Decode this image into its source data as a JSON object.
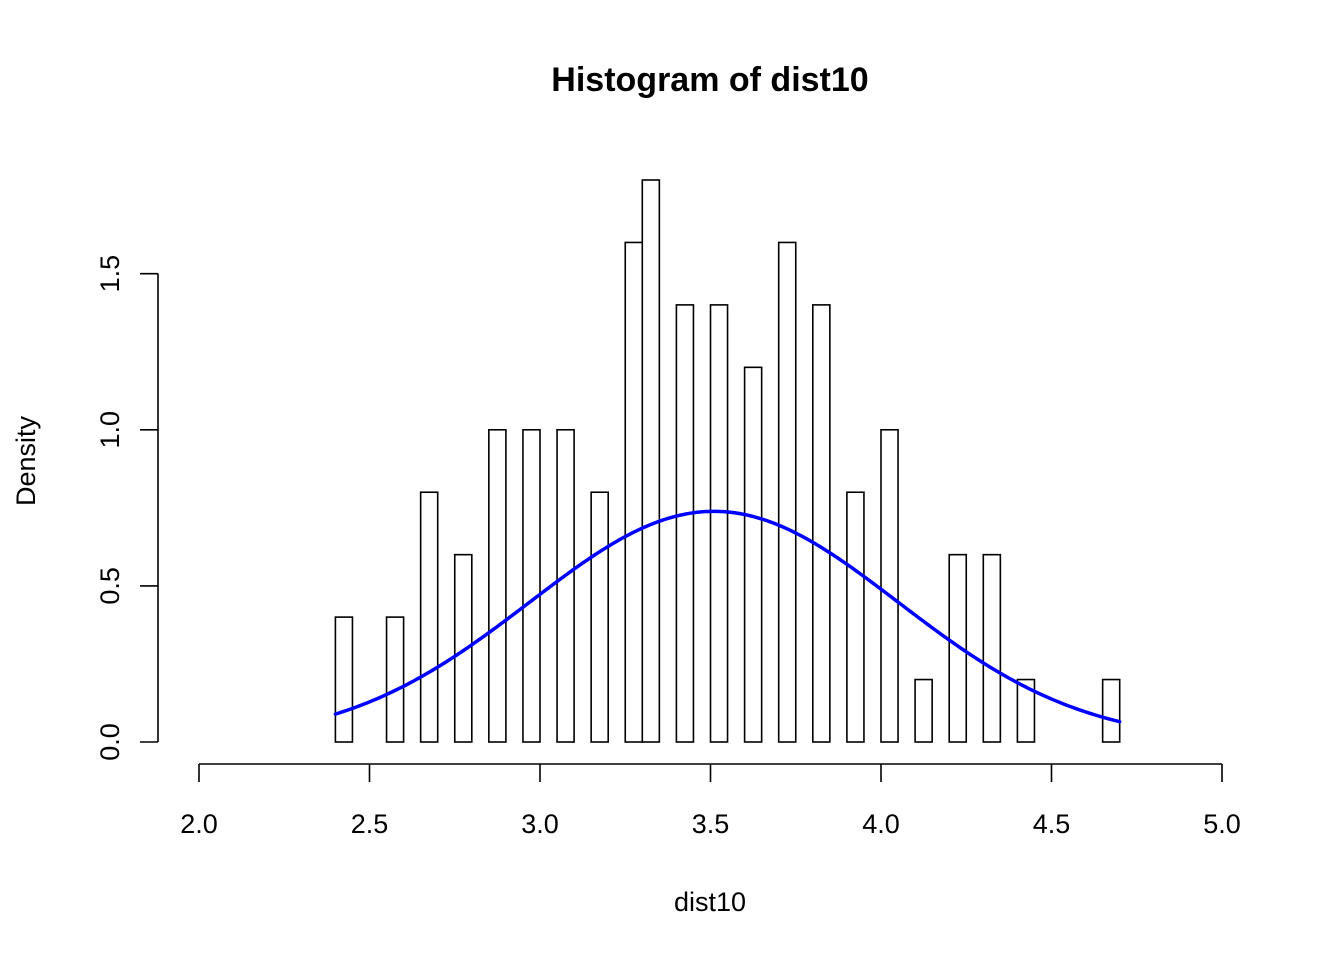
{
  "chart_data": {
    "type": "histogram",
    "title": "Histogram of dist10",
    "xlabel": "dist10",
    "ylabel": "Density",
    "xlim": [
      2.0,
      5.0
    ],
    "ylim": [
      0.0,
      1.8
    ],
    "x_ticks": [
      2.0,
      2.5,
      3.0,
      3.5,
      4.0,
      4.5,
      5.0
    ],
    "x_tick_labels": [
      "2.0",
      "2.5",
      "3.0",
      "3.5",
      "4.0",
      "4.5",
      "5.0"
    ],
    "y_ticks": [
      0.0,
      0.5,
      1.0,
      1.5
    ],
    "y_tick_labels": [
      "0.0",
      "0.5",
      "1.0",
      "1.5"
    ],
    "bin_width": 0.05,
    "bin_start": 2.4,
    "bin_end": 4.7,
    "densities": [
      0.4,
      0.0,
      0.0,
      0.4,
      0.0,
      0.8,
      0.0,
      0.6,
      0.0,
      1.0,
      0.0,
      1.0,
      0.0,
      1.0,
      0.0,
      0.8,
      0.0,
      1.6,
      1.8,
      0.0,
      1.4,
      0.0,
      1.4,
      0.0,
      1.2,
      0.0,
      1.6,
      0.0,
      1.4,
      0.0,
      0.8,
      0.0,
      1.0,
      0.0,
      0.2,
      0.0,
      0.6,
      0.0,
      0.6,
      0.0,
      0.2,
      0.0,
      0.0,
      0.0,
      0.0,
      0.2
    ],
    "curve": {
      "type": "normal-density",
      "mean": 3.51,
      "sd": 0.54,
      "x_range": [
        2.4,
        4.7
      ],
      "color": "#0000ff"
    },
    "grid": false,
    "legend": "none"
  }
}
